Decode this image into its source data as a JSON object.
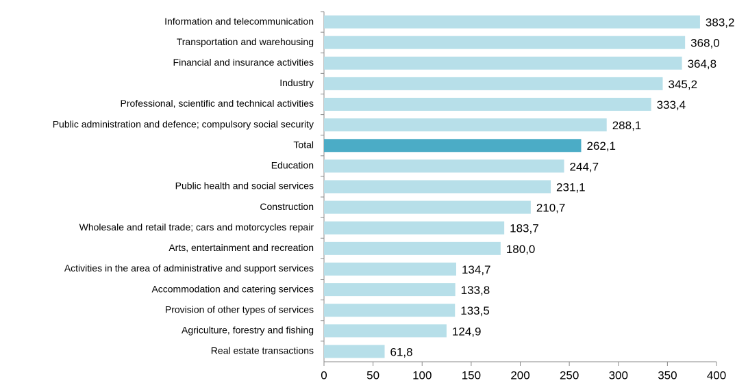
{
  "chart_data": {
    "type": "bar",
    "orientation": "horizontal",
    "categories": [
      "Information and telecommunication",
      "Transportation and warehousing",
      "Financial and insurance activities",
      "Industry",
      "Professional, scientific and technical activities",
      "Public administration and defence; compulsory social security",
      "Total",
      "Education",
      "Public health and social services",
      "Construction",
      "Wholesale and retail trade; cars and motorcycles repair",
      "Arts, entertainment and recreation",
      "Activities in the area of administrative and support services",
      "Accommodation and catering services",
      "Provision of other types of services",
      "Agriculture, forestry and fishing",
      "Real estate transactions"
    ],
    "values": [
      383.2,
      368.0,
      364.8,
      345.2,
      333.4,
      288.1,
      262.1,
      244.7,
      231.1,
      210.7,
      183.7,
      180.0,
      134.7,
      133.8,
      133.5,
      124.9,
      61.8
    ],
    "value_labels": [
      "383,2",
      "368,0",
      "364,8",
      "345,2",
      "333,4",
      "288,1",
      "262,1",
      "244,7",
      "231,1",
      "210,7",
      "183,7",
      "180,0",
      "134,7",
      "133,8",
      "133,5",
      "124,9",
      "61,8"
    ],
    "colors": [
      "#b7dfe9",
      "#b7dfe9",
      "#b7dfe9",
      "#b7dfe9",
      "#b7dfe9",
      "#b7dfe9",
      "#4bacc6",
      "#b7dfe9",
      "#b7dfe9",
      "#b7dfe9",
      "#b7dfe9",
      "#b7dfe9",
      "#b7dfe9",
      "#b7dfe9",
      "#b7dfe9",
      "#b7dfe9",
      "#b7dfe9"
    ],
    "xlim": [
      0,
      400
    ],
    "xticks": [
      0,
      50,
      100,
      150,
      200,
      250,
      300,
      350,
      400
    ],
    "grid": false
  }
}
